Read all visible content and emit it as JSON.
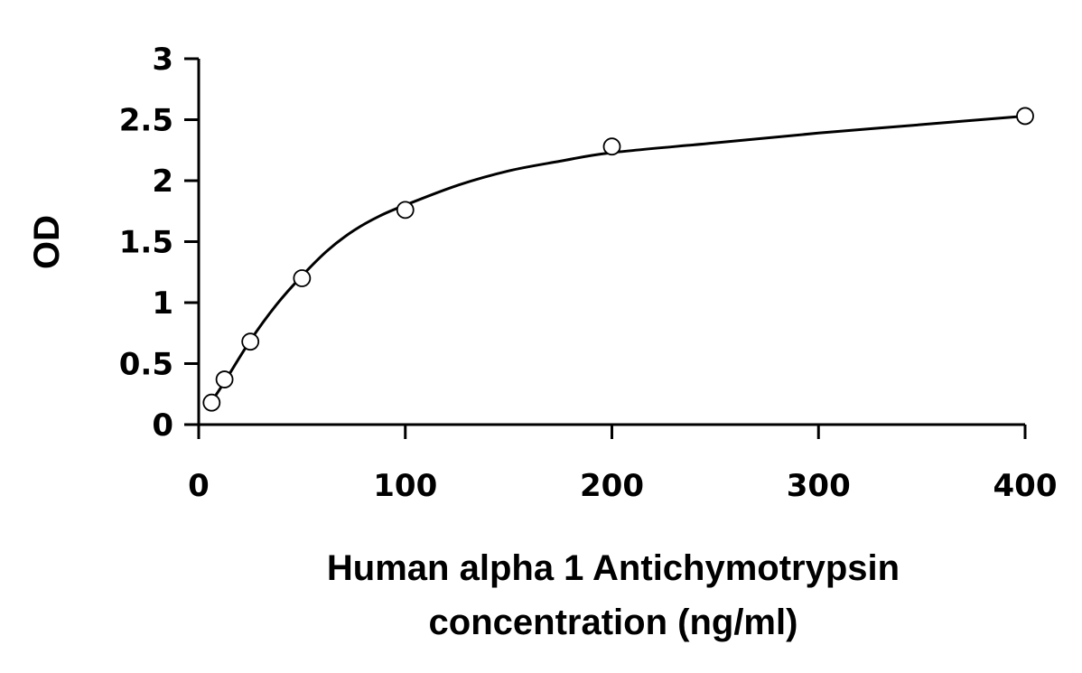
{
  "chart_data": {
    "type": "scatter",
    "title": "",
    "xlabel_lines": [
      "Human alpha 1 Antichymotrypsin",
      "concentration (ng/ml)"
    ],
    "ylabel": "OD",
    "xlim": [
      0,
      400
    ],
    "ylim": [
      0,
      3
    ],
    "xticks": [
      "0",
      "100",
      "200",
      "300",
      "400"
    ],
    "yticks": [
      "0",
      "0.5",
      "1",
      "1.5",
      "2",
      "2.5",
      "3"
    ],
    "grid": false,
    "legend": "none",
    "series": [
      {
        "marker": "open-circle",
        "x": [
          6.25,
          12.5,
          25,
          50,
          100,
          200,
          400
        ],
        "y": [
          0.18,
          0.37,
          0.68,
          1.2,
          1.76,
          2.28,
          2.53
        ]
      }
    ],
    "fit_curve": {
      "style": "smooth-line",
      "x": [
        6.25,
        12.5,
        25,
        37.5,
        50,
        62.5,
        75,
        87.5,
        100,
        125,
        150,
        175,
        200,
        250,
        300,
        350,
        400
      ],
      "y": [
        0.19,
        0.35,
        0.69,
        0.98,
        1.22,
        1.43,
        1.59,
        1.71,
        1.8,
        1.96,
        2.08,
        2.16,
        2.23,
        2.31,
        2.39,
        2.46,
        2.53
      ]
    }
  }
}
